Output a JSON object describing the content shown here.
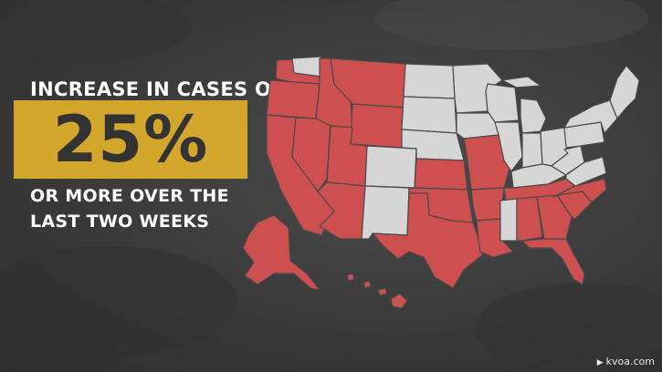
{
  "headline": {
    "line1": "INCREASE IN CASES OF"
  },
  "highlight": {
    "value": "25%",
    "box_color": "#d3a72c"
  },
  "subtext": {
    "line1": "OR MORE OVER THE",
    "line2": "LAST TWO WEEKS"
  },
  "map": {
    "increase_color": "#cd4f4f",
    "other_color": "#d6d6d6",
    "border_color": "#4a4a4a",
    "increase_states": [
      "Washington (partial)",
      "Oregon",
      "California",
      "Nevada",
      "Idaho",
      "Montana",
      "Wyoming",
      "Utah",
      "Arizona",
      "Kansas",
      "Oklahoma",
      "Texas",
      "Missouri",
      "Arkansas",
      "Louisiana",
      "Tennessee",
      "Alabama",
      "Georgia",
      "South Carolina",
      "North Carolina",
      "Florida",
      "Alaska",
      "Hawaii"
    ],
    "other_states": [
      "Colorado",
      "New Mexico",
      "North Dakota",
      "South Dakota",
      "Nebraska",
      "Minnesota",
      "Iowa",
      "Wisconsin",
      "Illinois",
      "Michigan",
      "Indiana",
      "Ohio",
      "Kentucky",
      "Mississippi",
      "Pennsylvania",
      "New York",
      "Virginia",
      "West Virginia",
      "New England"
    ]
  },
  "watermark": {
    "icon": "tv-icon",
    "text": "kvoa.com"
  }
}
